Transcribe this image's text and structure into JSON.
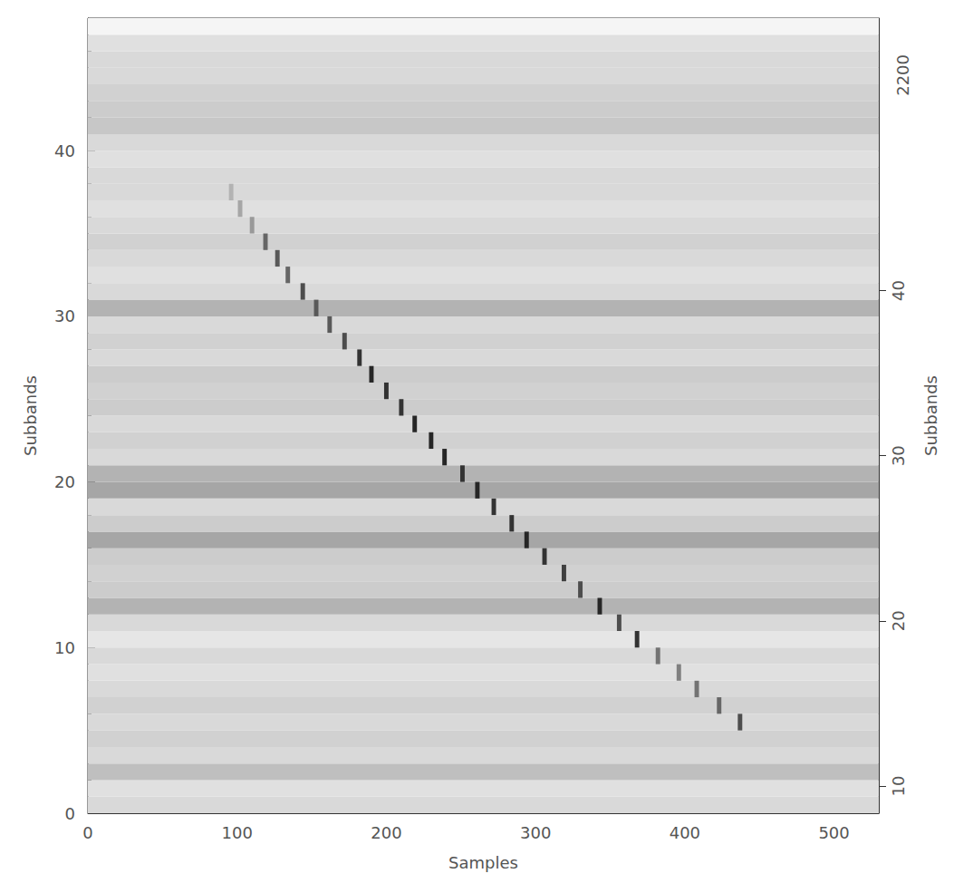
{
  "chart_data": {
    "type": "heatmap",
    "x_label": "Samples",
    "y_label": "Subbands",
    "y2_label": "Subbands",
    "xlim": [
      0,
      530
    ],
    "xticks": [
      0,
      100,
      200,
      300,
      400,
      500
    ],
    "ylim": [
      0,
      48
    ],
    "yticks": [
      0,
      10,
      20,
      30,
      40
    ],
    "y2lim": [
      8.35,
      56.5
    ],
    "y2ticks": [
      10,
      20,
      30,
      40
    ],
    "annotations": [
      "2200"
    ],
    "color": "#000000",
    "grid": false,
    "subband_levels": [
      0.15,
      0.12,
      0.25,
      0.15,
      0.18,
      0.15,
      0.18,
      0.15,
      0.12,
      0.15,
      0.1,
      0.15,
      0.3,
      0.2,
      0.18,
      0.2,
      0.35,
      0.2,
      0.15,
      0.35,
      0.3,
      0.15,
      0.18,
      0.15,
      0.2,
      0.18,
      0.2,
      0.15,
      0.18,
      0.15,
      0.3,
      0.15,
      0.12,
      0.15,
      0.18,
      0.15,
      0.12,
      0.15,
      0.15,
      0.12,
      0.15,
      0.22,
      0.2,
      0.18,
      0.15,
      0.15,
      0.12,
      0.04
    ],
    "pulse": {
      "subbands": [
        5,
        6,
        7,
        8,
        9,
        10,
        11,
        12,
        13,
        14,
        15,
        16,
        17,
        18,
        19,
        20,
        21,
        22,
        23,
        24,
        25,
        26,
        27,
        28,
        29,
        30,
        31,
        32,
        33,
        34,
        35,
        36,
        37
      ],
      "samples": [
        437,
        423,
        408,
        396,
        382,
        368,
        356,
        343,
        330,
        319,
        306,
        294,
        284,
        272,
        261,
        251,
        239,
        230,
        219,
        210,
        200,
        190,
        182,
        172,
        162,
        153,
        144,
        134,
        127,
        119,
        110,
        102,
        96
      ],
      "levels": [
        0.7,
        0.6,
        0.55,
        0.5,
        0.55,
        0.8,
        0.7,
        0.85,
        0.7,
        0.75,
        0.8,
        0.85,
        0.8,
        0.8,
        0.85,
        0.8,
        0.85,
        0.85,
        0.85,
        0.8,
        0.8,
        0.85,
        0.8,
        0.7,
        0.65,
        0.65,
        0.7,
        0.6,
        0.65,
        0.6,
        0.4,
        0.35,
        0.3
      ]
    }
  }
}
